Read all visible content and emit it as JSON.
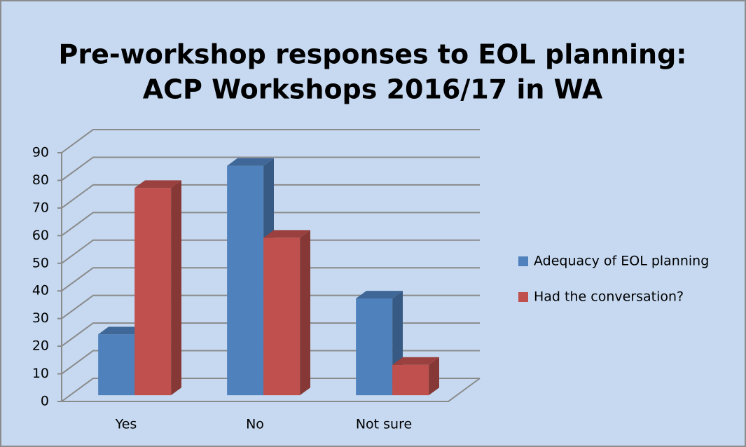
{
  "chart_data": {
    "type": "bar3d",
    "title": [
      "Pre-workshop responses to EOL planning:",
      "ACP Workshops 2016/17 in WA"
    ],
    "categories": [
      "Yes",
      "No",
      "Not sure"
    ],
    "series": [
      {
        "name": "Adequacy of EOL planning",
        "color": "#4f81bd",
        "values": [
          22,
          83,
          35
        ]
      },
      {
        "name": "Had the conversation?",
        "color": "#c0504d",
        "values": [
          75,
          57,
          11
        ]
      }
    ],
    "ylim": [
      0,
      90
    ],
    "yticks": [
      0,
      10,
      20,
      30,
      40,
      50,
      60,
      70,
      80,
      90
    ],
    "grid": true,
    "legend": "right"
  }
}
